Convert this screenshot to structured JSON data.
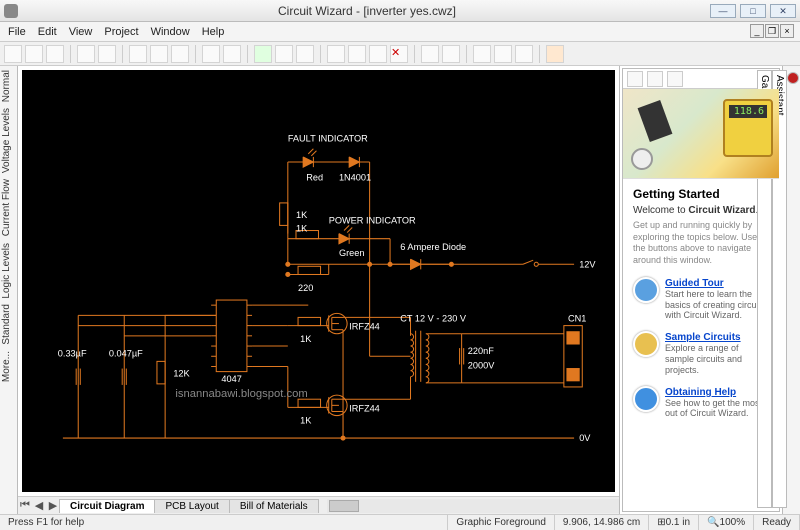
{
  "window": {
    "title": "Circuit Wizard - [inverter yes.cwz]",
    "controls": {
      "min": "—",
      "max": "□",
      "close": "✕"
    }
  },
  "menu": [
    "File",
    "Edit",
    "View",
    "Project",
    "Window",
    "Help"
  ],
  "left_tabs": [
    "Normal",
    "Voltage Levels",
    "Current Flow",
    "Logic Levels",
    "Standard",
    "More..."
  ],
  "right_tabs": [
    "Assistant",
    "Gallery"
  ],
  "sheet_tabs": [
    "Circuit Diagram",
    "PCB Layout",
    "Bill of Materials"
  ],
  "sheet_active": 0,
  "status": {
    "hint": "Press F1 for help",
    "layer": "Graphic Foreground",
    "coords": "9.906, 14.986 cm",
    "grid": "0.1 in",
    "zoom": "100%",
    "ready": "Ready"
  },
  "assistant": {
    "heading": "Getting Started",
    "welcome_pre": "Welcome to ",
    "welcome_bold": "Circuit Wizard",
    "sub": "Get up and running quickly by exploring the topics below. Use the buttons above to navigate around this window.",
    "meter_reading": "118.6",
    "items": [
      {
        "title": "Guided Tour",
        "desc": "Start here to learn the basics of creating circuits with Circuit Wizard.",
        "color": "#5aa0e0"
      },
      {
        "title": "Sample Circuits",
        "desc": "Explore a range of sample circuits and projects.",
        "color": "#e8c050"
      },
      {
        "title": "Obtaining Help",
        "desc": "See how to get the most out of Circuit Wizard.",
        "color": "#4090e0"
      }
    ]
  },
  "schematic": {
    "watermark": "isnannabawi.blogspot.com",
    "wire_color": "#e07820",
    "text_color": "#ffffff",
    "labels": {
      "fault": "FAULT INDICATOR",
      "red": "Red",
      "d1n": "1N4001",
      "r1k_a": "1K",
      "r1k_b": "1K",
      "r1k_c": "1K",
      "r1k_d": "1K",
      "pow": "POWER INDICATOR",
      "green": "Green",
      "amp6": "6 Ampere Diode",
      "r220": "220",
      "ic": "4047",
      "r12k": "12K",
      "c033": "0.33µF",
      "c047": "0.047µF",
      "fet1": "IRFZ44",
      "fet2": "IRFZ44",
      "trans": "CT 12 V - 230 V",
      "c220n": "220nF",
      "c2000v": "2000V",
      "node12v": "12V",
      "node0v": "0V",
      "cn1": "CN1"
    }
  },
  "colors": {
    "canvas_bg": "#000000"
  }
}
